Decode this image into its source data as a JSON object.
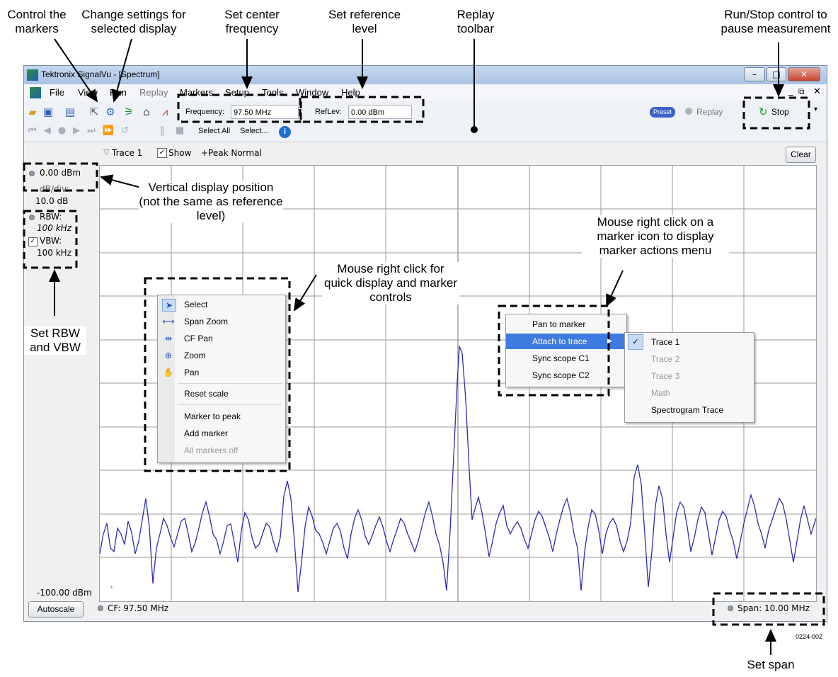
{
  "callouts": {
    "control_markers": "Control the markers",
    "change_settings": "Change settings for selected display",
    "set_center": "Set center frequency",
    "set_reference": "Set reference level",
    "replay_toolbar": "Replay toolbar",
    "run_stop": "Run/Stop control to pause measurement",
    "vertical_position": "Vertical display position (not the same as reference level)",
    "right_click": "Mouse right click for quick display and marker controls",
    "marker_actions": "Mouse right click on a marker icon to display marker actions menu",
    "set_rbw_vbw": "Set RBW and VBW",
    "set_span": "Set span",
    "figure_id": "0224-002"
  },
  "window": {
    "title": "Tektronix SignalVu - [Spectrum]",
    "menu": [
      "File",
      "View",
      "Run",
      "Replay",
      "Markers",
      "Setup",
      "Tools",
      "Window",
      "Help"
    ],
    "frequency_label": "Frequency:",
    "frequency_value": "97.50 MHz",
    "reflev_label": "RefLev:",
    "reflev_value": "0.00 dBm",
    "preset": "Preset",
    "replay": "Replay",
    "stop": "Stop",
    "select_all": "Select All",
    "select_more": "Select..."
  },
  "trace_bar": {
    "trace": "Trace 1",
    "show": "Show",
    "mode": "+Peak Normal",
    "clear": "Clear"
  },
  "left_panel": {
    "top_level": "0.00 dBm",
    "db_div_label": "dB/div:",
    "db_div_value": "10.0 dB",
    "rbw_label": "RBW:",
    "rbw_value": "100 kHz",
    "vbw_label": "VBW:",
    "vbw_value": "100 kHz",
    "bottom_level": "-100.00 dBm",
    "autoscale": "Autoscale"
  },
  "status": {
    "cf": "CF: 97.50 MHz",
    "span": "Span: 10.00 MHz"
  },
  "context_menu": {
    "items": [
      "Select",
      "Span Zoom",
      "CF Pan",
      "Zoom",
      "Pan",
      "Reset scale",
      "Marker to peak",
      "Add marker",
      "All markers off"
    ]
  },
  "marker_menu": {
    "items": [
      "Pan to marker",
      "Attach to trace",
      "Sync scope C1",
      "Sync scope C2"
    ],
    "submenu": [
      "Trace 1",
      "Trace 2",
      "Trace 3",
      "Math",
      "Spectrogram Trace"
    ]
  },
  "colors": {
    "trace": "#2c2cb4",
    "highlight": "#3d7be0",
    "stop_green": "#1f9d2f"
  }
}
